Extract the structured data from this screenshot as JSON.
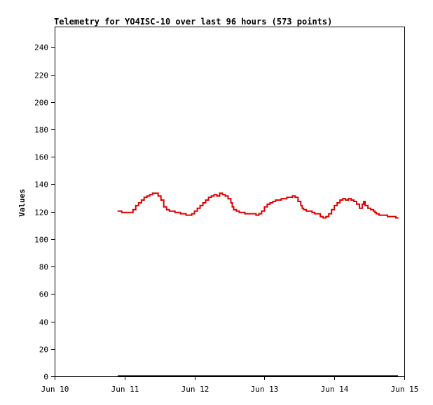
{
  "chart_data": {
    "type": "line",
    "title": "Telemetry for YO4ISC-10 over last 96 hours (573 points)",
    "ylabel": "Values",
    "xlabel": "",
    "xlim": [
      0,
      5
    ],
    "ylim": [
      0,
      255
    ],
    "x_ticks": [
      {
        "value": 0,
        "label": "Jun 10"
      },
      {
        "value": 1,
        "label": "Jun 11"
      },
      {
        "value": 2,
        "label": "Jun 12"
      },
      {
        "value": 3,
        "label": "Jun 13"
      },
      {
        "value": 4,
        "label": "Jun 14"
      },
      {
        "value": 5,
        "label": "Jun 15"
      }
    ],
    "y_ticks": [
      0,
      20,
      40,
      60,
      80,
      100,
      120,
      140,
      160,
      180,
      200,
      220,
      240
    ],
    "grid": false,
    "series": [
      {
        "color": "#e00000",
        "x": [
          0.9,
          0.93,
          0.96,
          1.0,
          1.04,
          1.08,
          1.12,
          1.16,
          1.2,
          1.24,
          1.28,
          1.32,
          1.36,
          1.4,
          1.44,
          1.48,
          1.52,
          1.56,
          1.6,
          1.64,
          1.68,
          1.72,
          1.76,
          1.8,
          1.84,
          1.88,
          1.92,
          1.96,
          2.0,
          2.04,
          2.08,
          2.12,
          2.16,
          2.2,
          2.24,
          2.28,
          2.32,
          2.36,
          2.4,
          2.44,
          2.48,
          2.52,
          2.54,
          2.56,
          2.6,
          2.64,
          2.68,
          2.72,
          2.76,
          2.8,
          2.84,
          2.88,
          2.92,
          2.96,
          3.0,
          3.04,
          3.08,
          3.12,
          3.16,
          3.2,
          3.24,
          3.28,
          3.32,
          3.36,
          3.4,
          3.44,
          3.48,
          3.52,
          3.54,
          3.56,
          3.6,
          3.64,
          3.68,
          3.72,
          3.76,
          3.8,
          3.84,
          3.88,
          3.92,
          3.96,
          4.0,
          4.04,
          4.08,
          4.12,
          4.16,
          4.2,
          4.24,
          4.28,
          4.32,
          4.36,
          4.4,
          4.42,
          4.44,
          4.48,
          4.52,
          4.56,
          4.58,
          4.6,
          4.62,
          4.64,
          4.68,
          4.72,
          4.76,
          4.8,
          4.84,
          4.88,
          4.92
        ],
        "y": [
          120.5,
          120.5,
          119.5,
          119.5,
          119.5,
          119.5,
          121.5,
          124.5,
          126.5,
          128.5,
          130.5,
          131.5,
          132.5,
          133.5,
          133.5,
          131.5,
          128.5,
          123.5,
          121.5,
          120.5,
          120.5,
          119.5,
          119.5,
          118.5,
          118.5,
          117.5,
          117.5,
          118.5,
          120.5,
          122.5,
          124.5,
          126.5,
          128.5,
          130.5,
          131.5,
          132.5,
          131.5,
          133.5,
          132.5,
          131.5,
          129.5,
          126.5,
          123.5,
          121.5,
          120.5,
          119.5,
          119.5,
          118.5,
          118.5,
          118.5,
          118.5,
          117.5,
          118.5,
          120.5,
          123.5,
          125.5,
          126.5,
          127.5,
          128.5,
          128.5,
          129.5,
          129.5,
          130.5,
          130.5,
          131.5,
          130.5,
          127.5,
          124.5,
          122.5,
          121.5,
          120.5,
          120.5,
          119.5,
          118.5,
          118.5,
          116.5,
          115.5,
          116.5,
          118.5,
          121.5,
          124.5,
          126.5,
          128.5,
          129.5,
          128.5,
          129.5,
          128.5,
          127.5,
          125.5,
          122.5,
          125.5,
          127.5,
          124.5,
          122.5,
          121.5,
          120.5,
          119.5,
          118.5,
          118.5,
          117.5,
          117.5,
          117.5,
          116.5,
          116.5,
          116.5,
          115.5,
          115.5
        ]
      }
    ]
  }
}
